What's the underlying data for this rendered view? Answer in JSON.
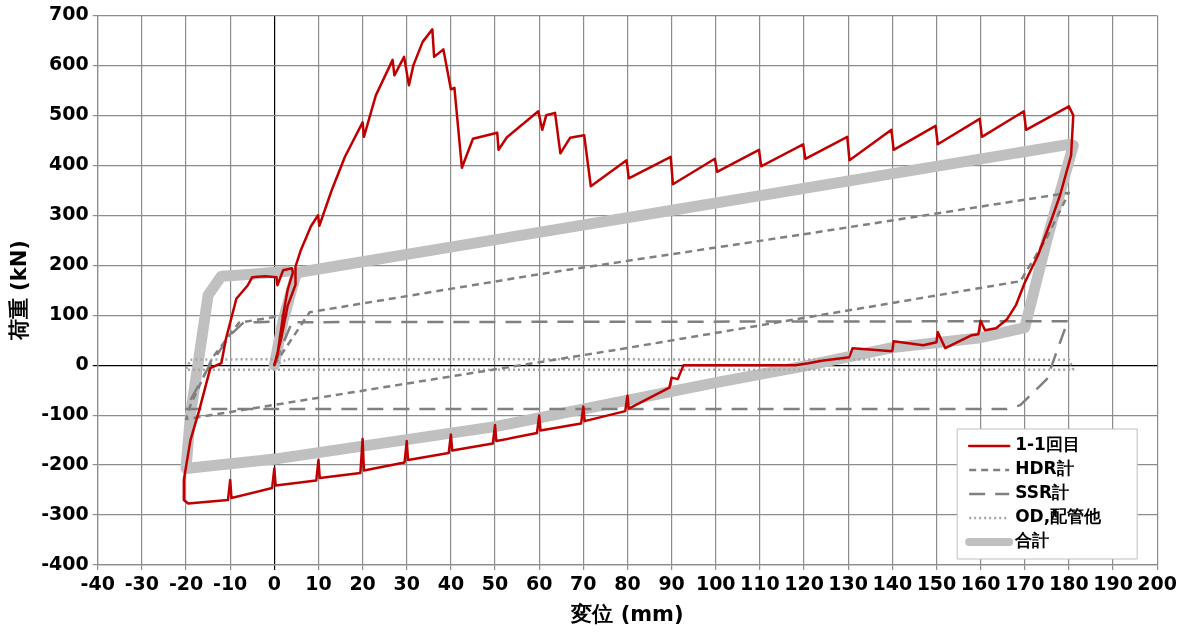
{
  "chart_data": {
    "type": "line",
    "xlabel": "変位 (mm)",
    "ylabel": "荷重 (kN)",
    "xlim": [
      -40,
      200
    ],
    "xticks": [
      -40,
      -30,
      -20,
      -10,
      0,
      10,
      20,
      30,
      40,
      50,
      60,
      70,
      80,
      90,
      100,
      110,
      120,
      130,
      140,
      150,
      160,
      170,
      180,
      190,
      200
    ],
    "ylim": [
      -400,
      700
    ],
    "yticks": [
      -400,
      -300,
      -200,
      -100,
      0,
      100,
      200,
      300,
      400,
      500,
      600,
      700
    ],
    "grid": true,
    "legend": "bottom right",
    "marker": "none",
    "series": [
      {
        "name": "1-1回目",
        "color": "#c00000",
        "line_style": "solid",
        "x": [
          0,
          1.5,
          3,
          4.8,
          4.8,
          6,
          8.3,
          9.9,
          10.2,
          13,
          16,
          20,
          20.3,
          23,
          26.8,
          27.2,
          29.4,
          30.5,
          31.5,
          33.6,
          35.8,
          36.2,
          38.3,
          40,
          40.8,
          42.5,
          45,
          50.5,
          50.8,
          52.7,
          59.8,
          60.7,
          61.6,
          63.6,
          64.8,
          67,
          70.2,
          71.7,
          79.8,
          80.3,
          89.8,
          90.3,
          99.8,
          100.3,
          109.8,
          110.3,
          119.8,
          120.3,
          129.8,
          130.3,
          139.8,
          140.3,
          149.8,
          150.3,
          159.8,
          160.3,
          169.8,
          170.3,
          180,
          181,
          180.5,
          178,
          176,
          173,
          170,
          168,
          166,
          163.5,
          161,
          160,
          159.5,
          158,
          152,
          150.3,
          150,
          147,
          140.3,
          140,
          131,
          130.3,
          124,
          121,
          118,
          92.7,
          91.4,
          90,
          89.5,
          80.3,
          80,
          79.5,
          70.3,
          70,
          69.5,
          60.3,
          60,
          59.5,
          50.3,
          50,
          49.5,
          40.3,
          40,
          39.5,
          30.3,
          30,
          29.5,
          20.3,
          20,
          19.5,
          10.3,
          10,
          9.5,
          0.3,
          0,
          -0.5,
          -9.7,
          -10,
          -10.5,
          -19.5,
          -20.5,
          -20.5,
          -19,
          -17,
          -14.5,
          -12,
          -11,
          -8.6,
          -6,
          -5,
          -2,
          0.5,
          0.7,
          2,
          4,
          4.2,
          3,
          2,
          0.6
        ],
        "values": [
          0,
          51,
          118,
          161,
          197,
          230,
          278,
          300,
          279,
          350,
          417,
          486,
          457,
          540,
          611,
          580,
          617,
          560,
          600,
          647,
          672,
          617,
          632,
          552,
          555,
          395,
          453,
          465,
          431,
          456,
          508,
          471,
          500,
          505,
          424,
          455,
          460,
          358,
          410,
          374,
          417,
          362,
          413,
          387,
          431,
          398,
          442,
          413,
          457,
          410,
          471,
          431,
          479,
          442,
          493,
          457,
          508,
          471,
          518,
          500,
          420,
          340,
          290,
          220,
          165,
          120,
          92,
          74,
          70,
          89,
          62,
          60,
          34,
          66,
          46,
          40,
          48,
          28,
          34,
          16,
          9,
          4,
          0,
          0,
          -28,
          -25,
          -45,
          -87,
          -61,
          -92,
          -112,
          -83,
          -117,
          -131,
          -101,
          -136,
          -152,
          -120,
          -157,
          -171,
          -139,
          -176,
          -190,
          -152,
          -195,
          -211,
          -148,
          -216,
          -226,
          -190,
          -231,
          -241,
          -207,
          -246,
          -266,
          -230,
          -270,
          -277,
          -270,
          -230,
          -150,
          -90,
          -6,
          4,
          51,
          133,
          160,
          176,
          178,
          176,
          160,
          190,
          194,
          185,
          150,
          100,
          15
        ]
      },
      {
        "name": "HDR計",
        "color": "#808080",
        "line_style": "dashed",
        "x": [
          0,
          8,
          60,
          120,
          180,
          175,
          169,
          77,
          -20,
          -19,
          -14,
          -8,
          4
        ],
        "values": [
          0,
          106,
          182,
          262,
          345,
          255,
          168,
          30,
          -108,
          -80,
          15,
          85,
          102
        ]
      },
      {
        "name": "SSR計",
        "color": "#808080",
        "line_style": "dashed",
        "x": [
          0,
          4,
          180,
          179,
          175,
          169,
          166,
          -20,
          -19,
          -15,
          -10,
          -7,
          0
        ],
        "values": [
          0,
          86,
          88,
          70,
          -28,
          -80,
          -88,
          -88,
          -70,
          -6,
          60,
          85,
          87
        ]
      },
      {
        "name": "OD,配管他",
        "color": "#a6a6a6",
        "line_style": "dotted",
        "x": [
          0,
          3,
          180,
          181,
          -20,
          -19,
          0
        ],
        "values": [
          0,
          12,
          11,
          -9,
          -9,
          11,
          12
        ]
      },
      {
        "name": "合計",
        "color": "#c0c0c0",
        "line_style": "solid",
        "x": [
          0,
          2,
          5,
          180,
          181,
          175,
          170,
          160,
          140,
          120,
          100,
          50,
          0,
          -20,
          -19,
          -15,
          -12,
          -5,
          3
        ],
        "values": [
          0,
          90,
          185,
          442,
          440,
          250,
          75,
          55,
          35,
          -2,
          -35,
          -123,
          -188,
          -207,
          -100,
          140,
          178,
          182,
          188
        ]
      }
    ]
  }
}
